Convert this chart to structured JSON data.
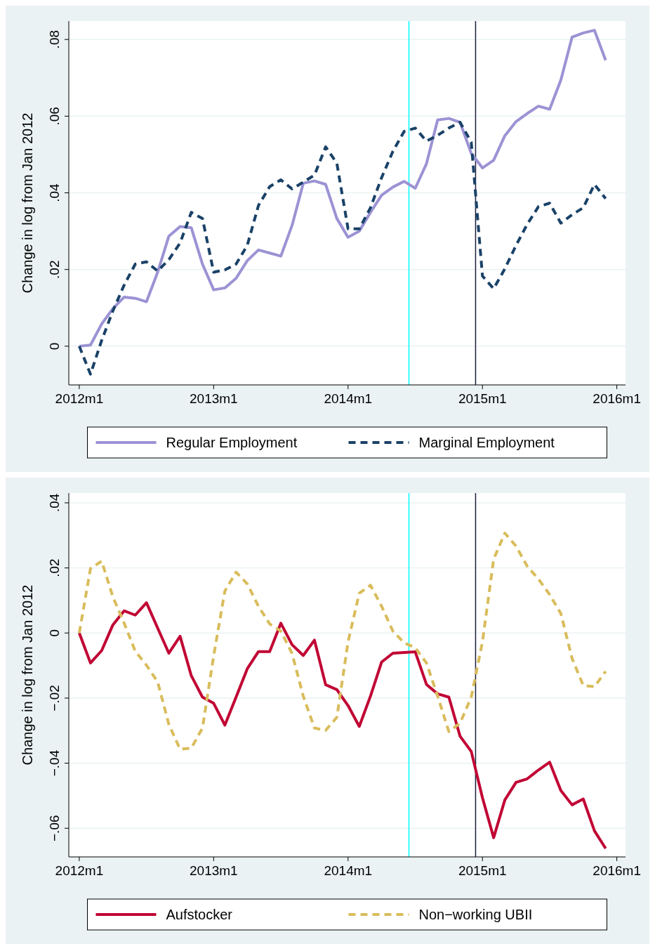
{
  "chart_data": [
    {
      "type": "line",
      "ylabel": "Change in log from Jan 2012",
      "grid": "y",
      "legend": "bottom",
      "x": [
        "2012-01",
        "2012-02",
        "2012-03",
        "2012-04",
        "2012-05",
        "2012-06",
        "2012-07",
        "2012-08",
        "2012-09",
        "2012-10",
        "2012-11",
        "2012-12",
        "2013-01",
        "2013-02",
        "2013-03",
        "2013-04",
        "2013-05",
        "2013-06",
        "2013-07",
        "2013-08",
        "2013-09",
        "2013-10",
        "2013-11",
        "2013-12",
        "2014-01",
        "2014-02",
        "2014-03",
        "2014-04",
        "2014-05",
        "2014-06",
        "2014-07",
        "2014-08",
        "2014-09",
        "2014-10",
        "2014-11",
        "2014-12",
        "2015-01",
        "2015-02",
        "2015-03",
        "2015-04",
        "2015-05",
        "2015-06",
        "2015-07",
        "2015-08",
        "2015-09",
        "2015-10",
        "2015-11",
        "2015-12"
      ],
      "xlim": [
        "2011-12-03",
        "2016-01-25"
      ],
      "xticks": [
        {
          "value": "2012-01",
          "label": "2012m1"
        },
        {
          "value": "2013-01",
          "label": "2013m1"
        },
        {
          "value": "2014-01",
          "label": "2014m1"
        },
        {
          "value": "2015-01",
          "label": "2015m1"
        },
        {
          "value": "2016-01",
          "label": "2016m1"
        }
      ],
      "ylim": [
        -0.0101,
        0.0848
      ],
      "yticks": [
        {
          "value": 0,
          "label": "0"
        },
        {
          "value": 0.02,
          "label": ".02"
        },
        {
          "value": 0.04,
          "label": ".04"
        },
        {
          "value": 0.06,
          "label": ".06"
        },
        {
          "value": 0.08,
          "label": ".08"
        }
      ],
      "series": [
        {
          "name": "Regular Employment",
          "color": "#9b93d4",
          "line_style": "solid",
          "values": [
            0,
            0.0003,
            0.0058,
            0.0098,
            0.0128,
            0.0125,
            0.0116,
            0.0193,
            0.0287,
            0.0312,
            0.0309,
            0.0214,
            0.0147,
            0.0152,
            0.0177,
            0.0223,
            0.0251,
            0.0243,
            0.0235,
            0.0315,
            0.0425,
            0.0431,
            0.0422,
            0.0333,
            0.0284,
            0.03,
            0.0349,
            0.0394,
            0.0415,
            0.043,
            0.0412,
            0.0476,
            0.059,
            0.0594,
            0.0584,
            0.0503,
            0.0465,
            0.0485,
            0.0549,
            0.0586,
            0.0607,
            0.0626,
            0.0618,
            0.0694,
            0.0806,
            0.0817,
            0.0824,
            0.0746
          ]
        },
        {
          "name": "Marginal Employment",
          "color": "#1a4268",
          "line_style": "dashed",
          "values": [
            0,
            -0.0073,
            0.0015,
            0.0092,
            0.0159,
            0.0214,
            0.022,
            0.0196,
            0.0226,
            0.0269,
            0.0349,
            0.0333,
            0.0193,
            0.0199,
            0.0214,
            0.0263,
            0.0367,
            0.0416,
            0.0434,
            0.041,
            0.0428,
            0.0446,
            0.052,
            0.0477,
            0.0306,
            0.0306,
            0.0361,
            0.044,
            0.0508,
            0.056,
            0.0569,
            0.0535,
            0.055,
            0.0569,
            0.0584,
            0.0532,
            0.0183,
            0.015,
            0.0202,
            0.0263,
            0.0318,
            0.0364,
            0.0373,
            0.0321,
            0.0343,
            0.0361,
            0.0422,
            0.0385
          ]
        }
      ],
      "ref_lines": [
        {
          "axis": "x",
          "value": "2014-06-14",
          "color": "#00ffff"
        },
        {
          "axis": "x",
          "value": "2014-12-13",
          "color": "#1a1f3c"
        }
      ]
    },
    {
      "type": "line",
      "ylabel": "Change in log from Jan 2012",
      "grid": "y",
      "legend": "bottom",
      "x": [
        "2012-01",
        "2012-02",
        "2012-03",
        "2012-04",
        "2012-05",
        "2012-06",
        "2012-07",
        "2012-08",
        "2012-09",
        "2012-10",
        "2012-11",
        "2012-12",
        "2013-01",
        "2013-02",
        "2013-03",
        "2013-04",
        "2013-05",
        "2013-06",
        "2013-07",
        "2013-08",
        "2013-09",
        "2013-10",
        "2013-11",
        "2013-12",
        "2014-01",
        "2014-02",
        "2014-03",
        "2014-04",
        "2014-05",
        "2014-06",
        "2014-07",
        "2014-08",
        "2014-09",
        "2014-10",
        "2014-11",
        "2014-12",
        "2015-01",
        "2015-02",
        "2015-03",
        "2015-04",
        "2015-05",
        "2015-06",
        "2015-07",
        "2015-08",
        "2015-09",
        "2015-10",
        "2015-11",
        "2015-12"
      ],
      "xlim": [
        "2011-12-03",
        "2016-01-25"
      ],
      "xticks": [
        {
          "value": "2012-01",
          "label": "2012m1"
        },
        {
          "value": "2013-01",
          "label": "2013m1"
        },
        {
          "value": "2014-01",
          "label": "2014m1"
        },
        {
          "value": "2015-01",
          "label": "2015m1"
        },
        {
          "value": "2016-01",
          "label": "2016m1"
        }
      ],
      "ylim": [
        -0.0688,
        0.043
      ],
      "yticks": [
        {
          "value": -0.06,
          "label": "−.06"
        },
        {
          "value": -0.04,
          "label": "−.04"
        },
        {
          "value": -0.02,
          "label": "−.02"
        },
        {
          "value": 0,
          "label": "0"
        },
        {
          "value": 0.02,
          "label": ".02"
        },
        {
          "value": 0.04,
          "label": ".04"
        }
      ],
      "series": [
        {
          "name": "Aufstocker",
          "color": "#c10534",
          "line_style": "solid",
          "values": [
            0,
            -0.0092,
            -0.0054,
            0.0025,
            0.0068,
            0.0055,
            0.0093,
            0.0015,
            -0.0062,
            -0.001,
            -0.0131,
            -0.0197,
            -0.0216,
            -0.0283,
            -0.0197,
            -0.011,
            -0.0057,
            -0.0057,
            0.003,
            -0.0036,
            -0.0069,
            -0.0022,
            -0.0159,
            -0.0174,
            -0.0223,
            -0.0287,
            -0.0194,
            -0.0089,
            -0.0062,
            -0.006,
            -0.0058,
            -0.0158,
            -0.0187,
            -0.0197,
            -0.0317,
            -0.0364,
            -0.0506,
            -0.0629,
            -0.0513,
            -0.0459,
            -0.0448,
            -0.0421,
            -0.0397,
            -0.0484,
            -0.0528,
            -0.051,
            -0.0608,
            -0.0662
          ]
        },
        {
          "name": "Non−working UBII",
          "color": "#d9bc5b",
          "line_style": "dashed",
          "values": [
            0,
            0.0198,
            0.0221,
            0.0111,
            0.0031,
            -0.0056,
            -0.0099,
            -0.015,
            -0.0281,
            -0.0357,
            -0.0354,
            -0.0292,
            -0.007,
            0.0129,
            0.0187,
            0.0151,
            0.0082,
            0.0028,
            0.0006,
            -0.0063,
            -0.0194,
            -0.0292,
            -0.0299,
            -0.0259,
            -0.0027,
            0.0122,
            0.0147,
            0.0082,
            0.0006,
            -0.003,
            -0.0045,
            -0.0092,
            -0.0194,
            -0.0303,
            -0.0277,
            -0.0197,
            -0.0027,
            0.0227,
            0.0307,
            0.0267,
            0.0205,
            0.0166,
            0.0118,
            0.006,
            -0.0078,
            -0.0161,
            -0.0165,
            -0.0118
          ]
        }
      ],
      "ref_lines": [
        {
          "axis": "x",
          "value": "2014-06-14",
          "color": "#00ffff"
        },
        {
          "axis": "x",
          "value": "2014-12-13",
          "color": "#1a1f3c"
        }
      ]
    }
  ]
}
